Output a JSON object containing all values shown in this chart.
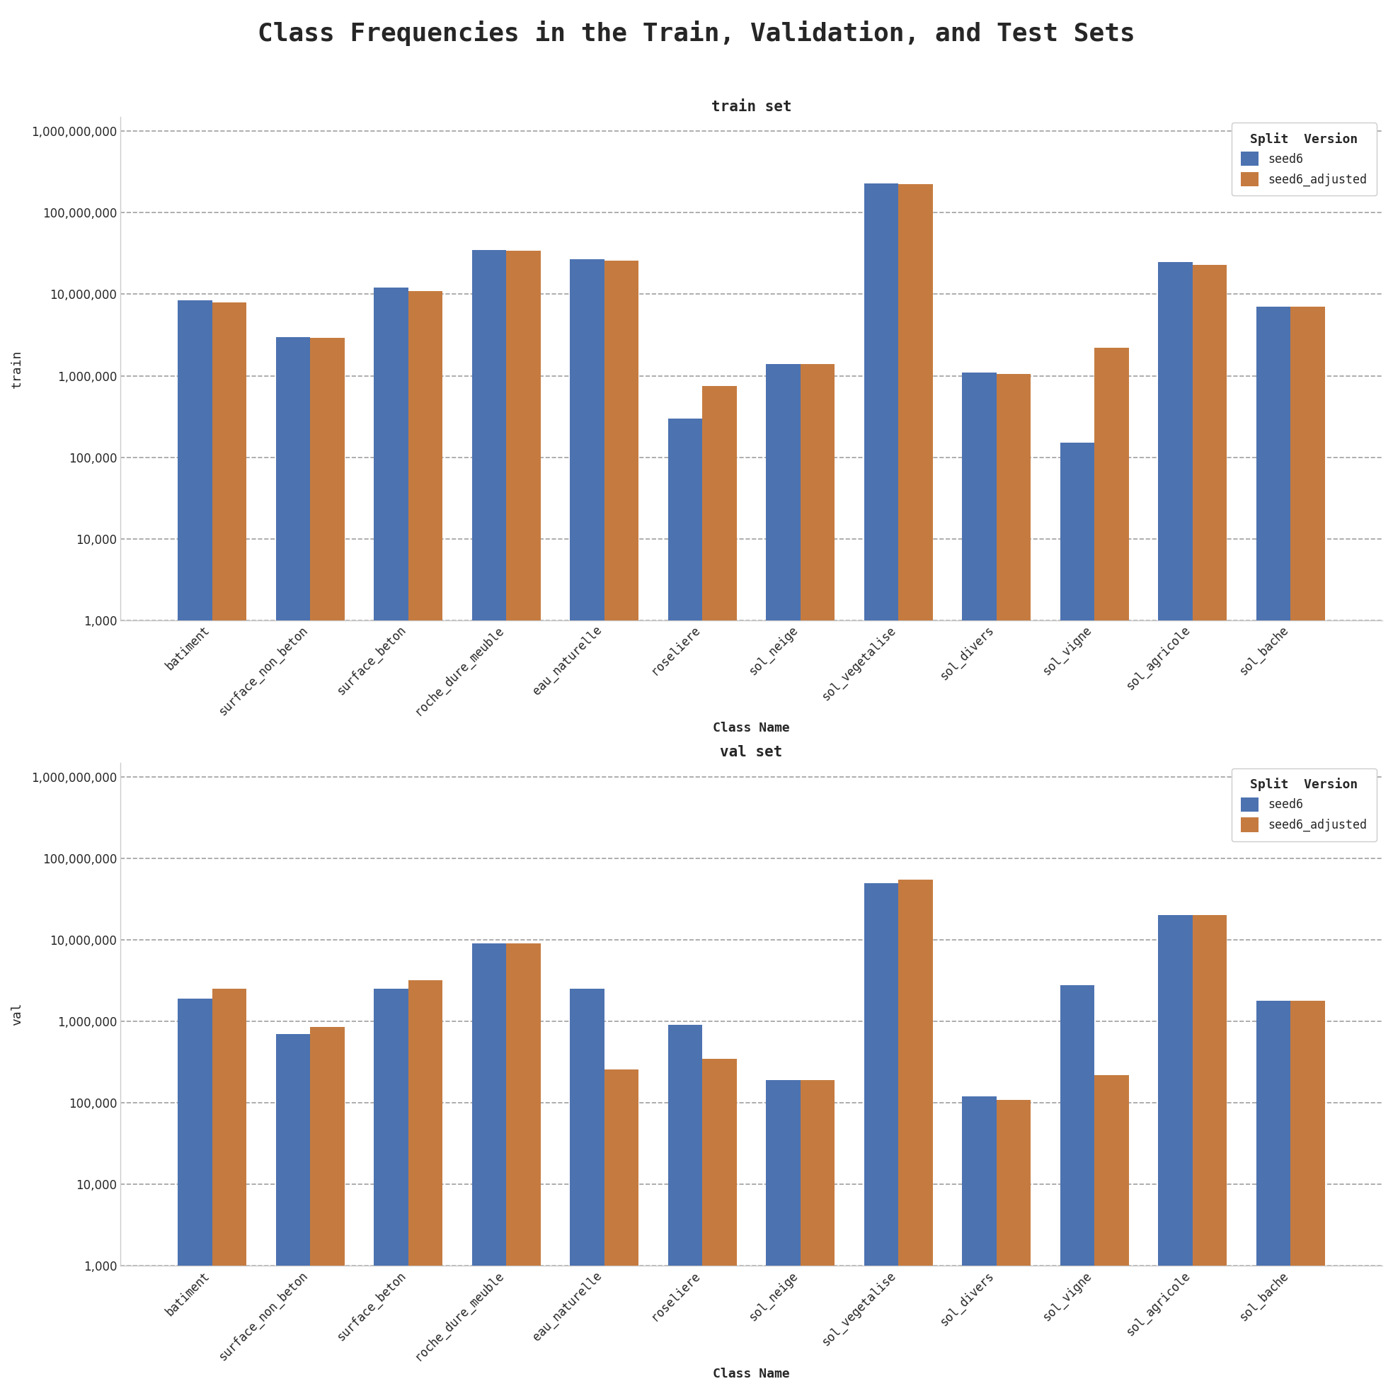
{
  "title": "Class Frequencies in the Train, Validation, and Test Sets",
  "categories": [
    "batiment",
    "surface_non_beton",
    "surface_beton",
    "roche_dure_meuble",
    "eau_naturelle",
    "roseliere",
    "sol_neige",
    "sol_vegetalise",
    "sol_divers",
    "sol_vigne",
    "sol_agricole",
    "sol_bache"
  ],
  "train": {
    "title": "train set",
    "ylabel": "train",
    "seed6": [
      8500000,
      3000000,
      12000000,
      35000000,
      27000000,
      300000,
      1400000,
      230000000,
      1100000,
      150000,
      25000000,
      7000000
    ],
    "seed6_adjusted": [
      8000000,
      2900000,
      11000000,
      34000000,
      26000000,
      750000,
      1400000,
      225000000,
      1050000,
      2200000,
      23000000,
      7000000
    ]
  },
  "val": {
    "title": "val set",
    "ylabel": "val",
    "seed6": [
      1900000,
      700000,
      2500000,
      9000000,
      2500000,
      900000,
      190000,
      50000000,
      120000,
      2800000,
      20000000,
      1800000
    ],
    "seed6_adjusted": [
      2500000,
      850000,
      3200000,
      9000000,
      260000,
      350000,
      190000,
      55000000,
      110000,
      220000,
      20000000,
      1800000
    ]
  },
  "colors": {
    "seed6": "#4c72b0",
    "seed6_adjusted": "#c57b40"
  },
  "legend_title": "Split  Version",
  "legend_labels": [
    "seed6",
    "seed6_adjusted"
  ],
  "xlabel": "Class Name",
  "train_ylim": [
    1000,
    1500000000
  ],
  "val_ylim": [
    1000,
    1500000000
  ],
  "background_color": "#ffffff",
  "figure_facecolor": "#ffffff",
  "bar_width": 0.35,
  "title_fontsize": 26,
  "subtitle_fontsize": 15,
  "axis_label_fontsize": 13,
  "tick_fontsize": 12,
  "legend_fontsize": 12
}
